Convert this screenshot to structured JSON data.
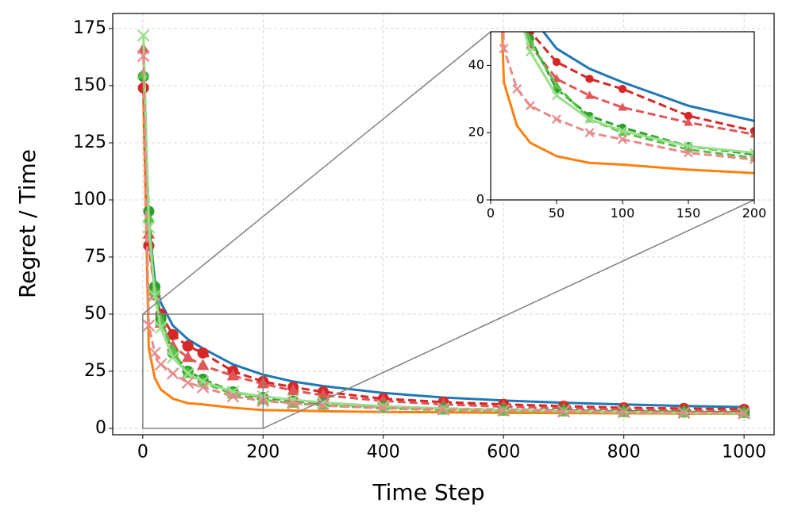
{
  "chart_data": {
    "type": "line",
    "xlabel": "Time Step",
    "ylabel": "Regret / Time",
    "xlim": [
      -50,
      1050
    ],
    "ylim": [
      -2.8,
      181.6
    ],
    "xticks": [
      0,
      200,
      400,
      600,
      800,
      1000
    ],
    "yticks": [
      0,
      25,
      50,
      75,
      100,
      125,
      150,
      175
    ],
    "grid": true,
    "x": [
      1,
      10,
      20,
      30,
      50,
      75,
      100,
      150,
      200,
      250,
      300,
      400,
      500,
      600,
      700,
      800,
      900,
      1000
    ],
    "series": [
      {
        "color": "#1f77b4",
        "dash": false,
        "marker": null,
        "values": [
          150,
          90,
          65,
          55,
          45,
          39,
          35,
          28,
          23.5,
          20.5,
          18.5,
          15.5,
          13.5,
          12.2,
          11.2,
          10.5,
          9.8,
          9.3
        ]
      },
      {
        "color": "#ff7f0e",
        "dash": false,
        "marker": null,
        "values": [
          145,
          35,
          22,
          17,
          13,
          11,
          10.5,
          9,
          8,
          7.8,
          7.5,
          7.2,
          7,
          6.8,
          6.7,
          6.6,
          6.5,
          6.4
        ]
      },
      {
        "color": "#d62728",
        "dash": true,
        "marker": "o",
        "values": [
          149,
          80,
          60,
          50,
          41,
          36,
          33,
          25,
          20.5,
          18,
          16,
          13,
          11.5,
          10.5,
          9.7,
          9,
          8.7,
          8.3
        ]
      },
      {
        "color": "#e05555",
        "dash": true,
        "marker": "^",
        "values": [
          166,
          85,
          58,
          46,
          36,
          31,
          27.5,
          23,
          19.5,
          16.5,
          14.5,
          12,
          10.5,
          9.5,
          8.8,
          8.3,
          7.8,
          7.5
        ]
      },
      {
        "color": "#2ca02c",
        "dash": true,
        "marker": "o",
        "values": [
          154,
          95,
          62,
          48,
          33,
          25,
          21.5,
          16,
          13.5,
          12,
          11,
          9.5,
          8.7,
          8.2,
          7.8,
          7.5,
          7.2,
          7
        ]
      },
      {
        "color": "#5cbf4a",
        "dash": true,
        "marker": "^",
        "values": [
          155,
          92,
          60,
          47,
          34,
          24,
          20,
          15,
          12.5,
          11,
          10,
          8.8,
          8,
          7.5,
          7.2,
          6.9,
          6.7,
          6.5
        ]
      },
      {
        "color": "#98df8a",
        "dash": false,
        "marker": "x",
        "values": [
          172,
          88,
          58,
          44,
          31,
          24,
          20.5,
          16,
          14,
          12.5,
          11.3,
          9.7,
          8.7,
          8,
          7.5,
          7.1,
          6.8,
          6.5
        ]
      },
      {
        "color": "#e8898a",
        "dash": true,
        "marker": "x",
        "values": [
          163,
          45,
          33,
          28,
          24,
          20,
          18,
          14,
          12,
          11,
          10,
          9,
          8.3,
          7.8,
          7.4,
          7.1,
          6.9,
          6.7
        ]
      }
    ],
    "inset": {
      "xlim": [
        0,
        200
      ],
      "ylim": [
        0,
        50
      ],
      "xticks": [
        0,
        50,
        100,
        150,
        200
      ],
      "yticks": [
        0,
        20,
        40
      ]
    }
  }
}
